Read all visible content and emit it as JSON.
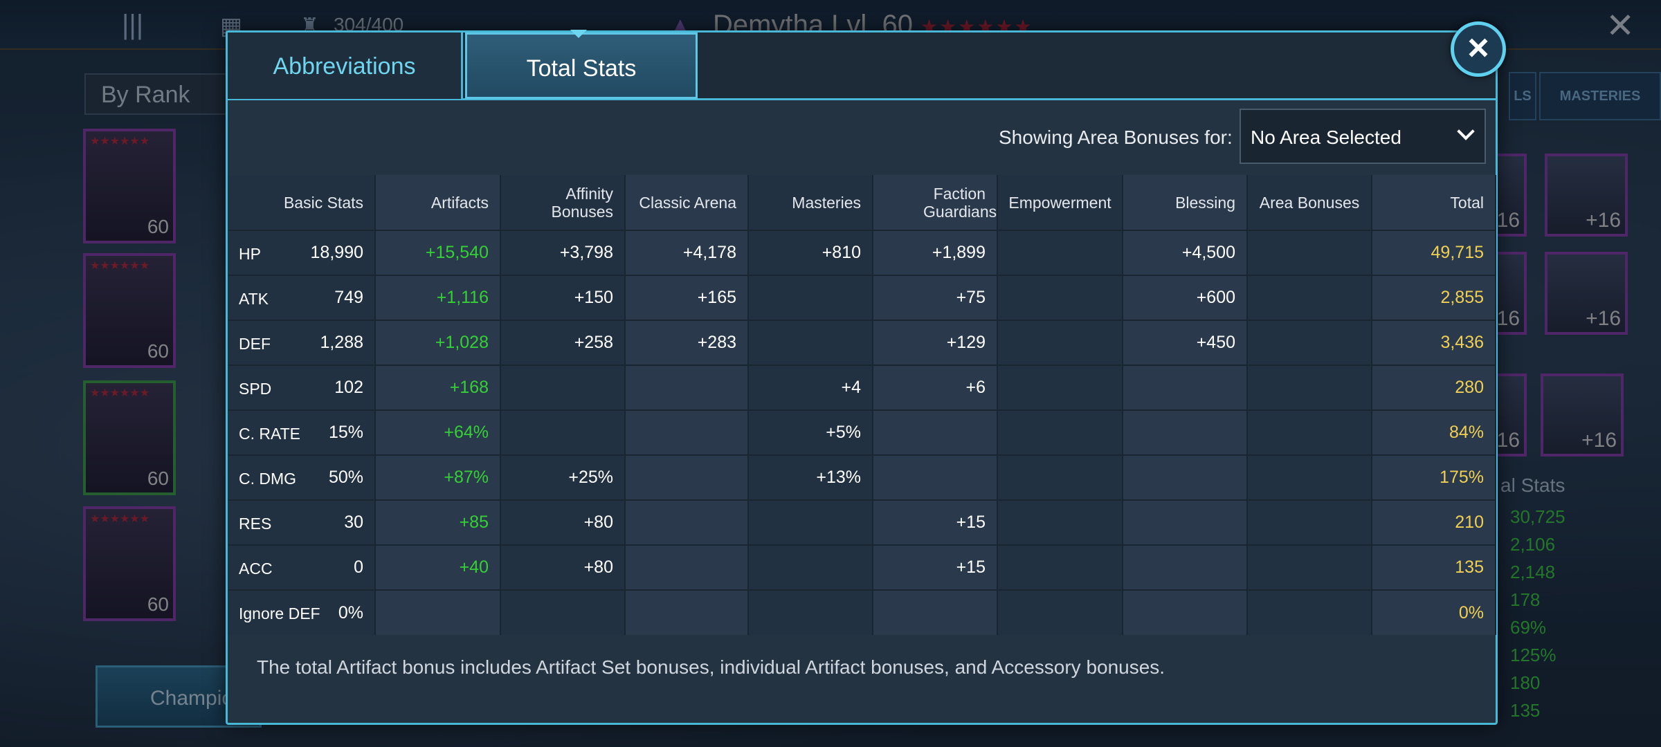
{
  "background": {
    "champion_count": "304/400",
    "champion_title": "Demytha Lvl. 60",
    "title_stars": "★★★★★★",
    "sort_select": "By Rank",
    "champion_levels": [
      "60",
      "60",
      "60",
      "60"
    ],
    "champion_card_stars": "★★★★★★",
    "champion_button_label": "Champio",
    "tab_partial": "LS",
    "tab_masteries": "MASTERIES",
    "gear_levels": [
      "+16",
      "+16",
      "+16",
      "+16",
      "+16",
      "+16"
    ],
    "side_stats_title": "al Stats",
    "side_stats_values": [
      "30,725",
      "2,106",
      "2,148",
      "178",
      "69%",
      "125%",
      "180",
      "135"
    ]
  },
  "modal": {
    "tabs": [
      {
        "label": "Abbreviations",
        "active": false
      },
      {
        "label": "Total Stats",
        "active": true
      }
    ],
    "close_icon": "×",
    "area_label": "Showing Area Bonuses for:",
    "area_select": "No Area Selected",
    "columns": [
      "Basic Stats",
      "Artifacts",
      "Affinity Bonuses",
      "Classic Arena",
      "Masteries",
      "Faction Guardians",
      "Empowerment",
      "Blessing",
      "Area Bonuses",
      "Total"
    ],
    "rows": [
      {
        "stat": "HP",
        "values": [
          "18,990",
          "+15,540",
          "+3,798",
          "+4,178",
          "+810",
          "+1,899",
          "",
          "+4,500",
          "",
          "49,715"
        ]
      },
      {
        "stat": "ATK",
        "values": [
          "749",
          "+1,116",
          "+150",
          "+165",
          "",
          "+75",
          "",
          "+600",
          "",
          "2,855"
        ]
      },
      {
        "stat": "DEF",
        "values": [
          "1,288",
          "+1,028",
          "+258",
          "+283",
          "",
          "+129",
          "",
          "+450",
          "",
          "3,436"
        ]
      },
      {
        "stat": "SPD",
        "values": [
          "102",
          "+168",
          "",
          "",
          "+4",
          "+6",
          "",
          "",
          "",
          "280"
        ]
      },
      {
        "stat": "C. RATE",
        "values": [
          "15%",
          "+64%",
          "",
          "",
          "+5%",
          "",
          "",
          "",
          "",
          "84%"
        ]
      },
      {
        "stat": "C. DMG",
        "values": [
          "50%",
          "+87%",
          "+25%",
          "",
          "+13%",
          "",
          "",
          "",
          "",
          "175%"
        ]
      },
      {
        "stat": "RES",
        "values": [
          "30",
          "+85",
          "+80",
          "",
          "",
          "+15",
          "",
          "",
          "",
          "210"
        ]
      },
      {
        "stat": "ACC",
        "values": [
          "0",
          "+40",
          "+80",
          "",
          "",
          "+15",
          "",
          "",
          "",
          "135"
        ]
      },
      {
        "stat": "Ignore DEF",
        "values": [
          "0%",
          "",
          "",
          "",
          "",
          "",
          "",
          "",
          "",
          "0%"
        ]
      }
    ],
    "footnote": "The total Artifact bonus includes Artifact Set bonuses, individual Artifact bonuses, and Accessory bonuses."
  },
  "colors": {
    "accent": "#49b7d6",
    "artifact_green": "#35d035",
    "total_gold": "#f0d054"
  }
}
